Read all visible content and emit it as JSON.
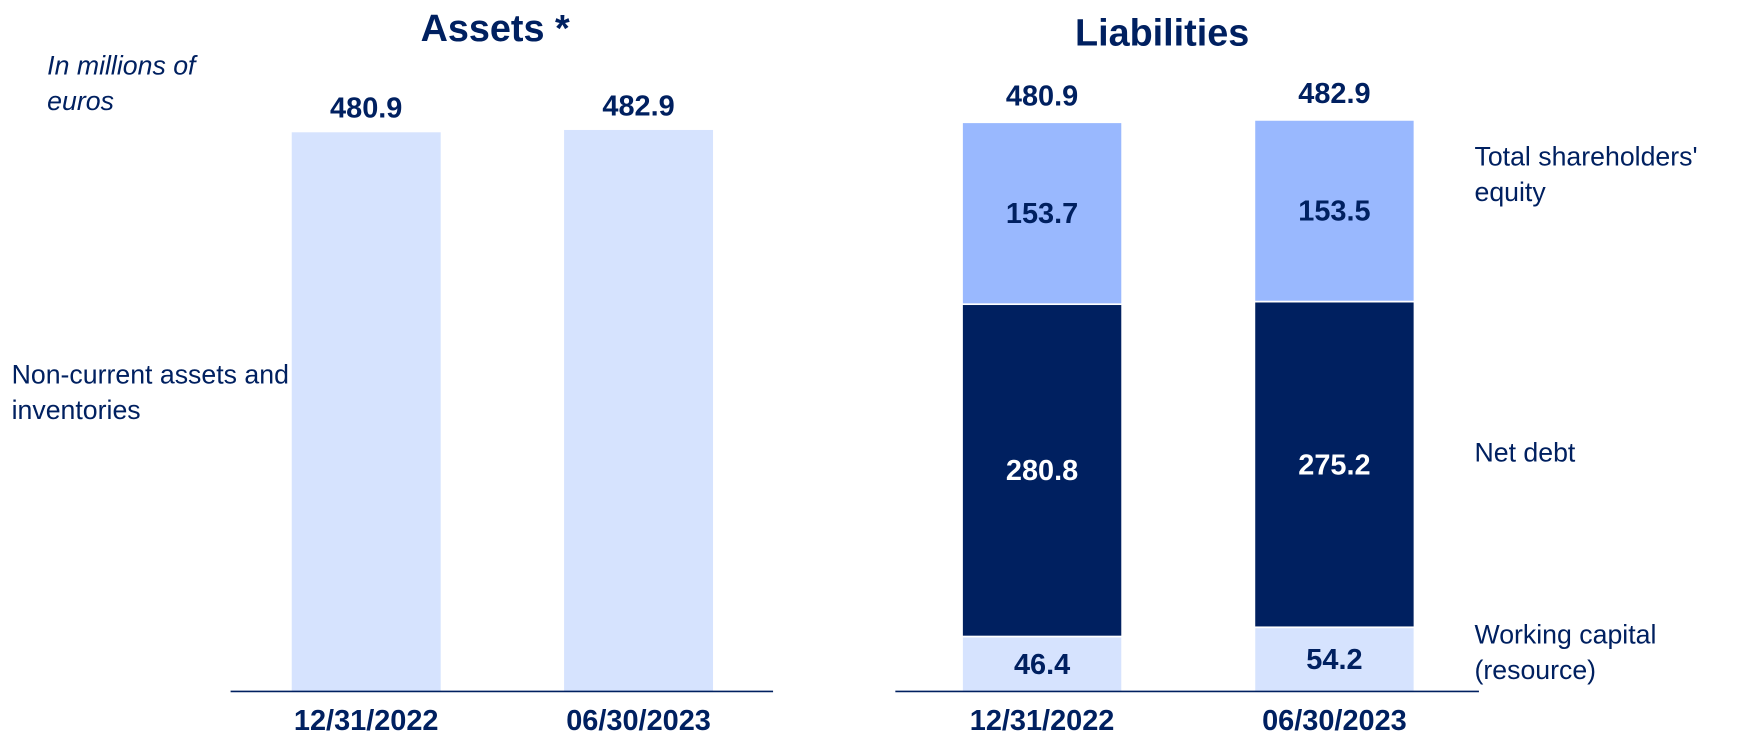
{
  "chart_data": [
    {
      "type": "bar",
      "title": "Assets *",
      "note": "In millions of euros",
      "categories": [
        "12/31/2022",
        "06/30/2023"
      ],
      "series": [
        {
          "name": "Non-current assets and inventories",
          "color": "#d6e3fe",
          "values": [
            480.9,
            482.9
          ]
        }
      ]
    },
    {
      "type": "stacked_bar",
      "title": "Liabilities",
      "categories": [
        "12/31/2022",
        "06/30/2023"
      ],
      "totals": [
        480.9,
        482.9
      ],
      "series": [
        {
          "name": "Working capital (resource)",
          "color": "#d6e3fe",
          "values": [
            46.4,
            54.2
          ]
        },
        {
          "name": "Net debt",
          "color": "#002060",
          "values": [
            280.8,
            275.2
          ]
        },
        {
          "name": "Total shareholders' equity",
          "color": "#99b8fe",
          "values": [
            153.7,
            153.5
          ]
        }
      ]
    }
  ]
}
